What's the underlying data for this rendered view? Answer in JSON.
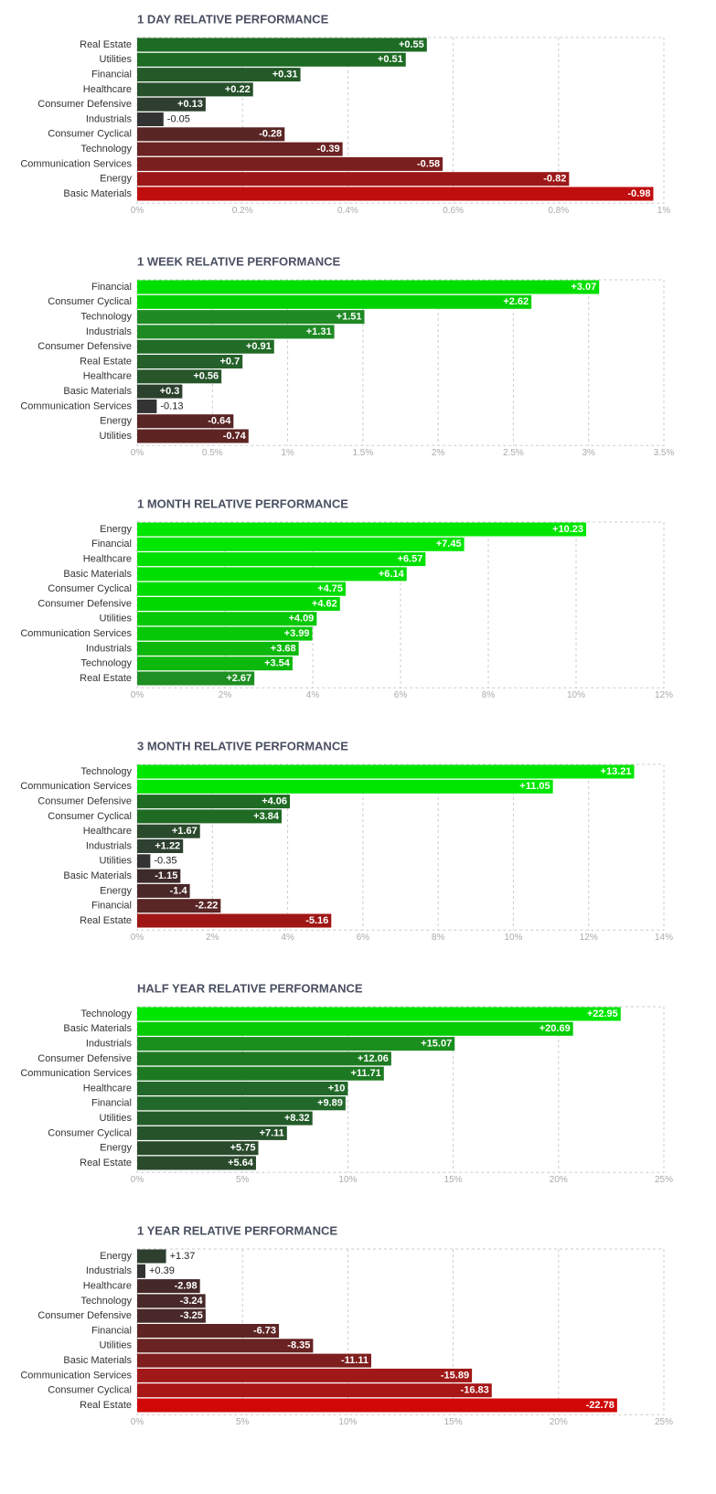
{
  "chart_data": [
    {
      "type": "bar",
      "title": "1 DAY RELATIVE PERFORMANCE",
      "categories": [
        "Real Estate",
        "Utilities",
        "Financial",
        "Healthcare",
        "Consumer Defensive",
        "Industrials",
        "Consumer Cyclical",
        "Technology",
        "Communication Services",
        "Energy",
        "Basic Materials"
      ],
      "values": [
        0.55,
        0.51,
        0.31,
        0.22,
        0.13,
        -0.05,
        -0.28,
        -0.39,
        -0.58,
        -0.82,
        -0.98
      ],
      "value_labels": [
        "+0.55",
        "+0.51",
        "+0.31",
        "+0.22",
        "+0.13",
        "-0.05",
        "-0.28",
        "-0.39",
        "-0.58",
        "-0.82",
        "-0.98"
      ],
      "colors": [
        "#1e6b24",
        "#1e6b24",
        "#235a27",
        "#26502a",
        "#2e3f2f",
        "#333333",
        "#5a2525",
        "#6a2222",
        "#7a1f1f",
        "#9c1717",
        "#c00e0e"
      ],
      "xlim": [
        0,
        1
      ],
      "xticks": [
        {
          "value": 0,
          "label": "0%"
        },
        {
          "value": 0.2,
          "label": "0.2%"
        },
        {
          "value": 0.4,
          "label": "0.4%"
        },
        {
          "value": 0.6,
          "label": "0.6%"
        },
        {
          "value": 0.8,
          "label": "0.8%"
        },
        {
          "value": 1,
          "label": "1%"
        }
      ],
      "grid": true
    },
    {
      "type": "bar",
      "title": "1 WEEK RELATIVE PERFORMANCE",
      "categories": [
        "Financial",
        "Consumer Cyclical",
        "Technology",
        "Industrials",
        "Consumer Defensive",
        "Real Estate",
        "Healthcare",
        "Basic Materials",
        "Communication Services",
        "Energy",
        "Utilities"
      ],
      "values": [
        3.07,
        2.62,
        1.51,
        1.31,
        0.91,
        0.7,
        0.56,
        0.3,
        -0.13,
        -0.64,
        -0.74
      ],
      "value_labels": [
        "+3.07",
        "+2.62",
        "+1.51",
        "+1.31",
        "+0.91",
        "+0.7",
        "+0.56",
        "+0.3",
        "-0.13",
        "-0.64",
        "-0.74"
      ],
      "colors": [
        "#00e000",
        "#00d200",
        "#1f8a24",
        "#1f8a24",
        "#216b26",
        "#25602a",
        "#26562a",
        "#2c402e",
        "#333333",
        "#5a2525",
        "#5e2424"
      ],
      "xlim": [
        0,
        3.5
      ],
      "xticks": [
        {
          "value": 0,
          "label": "0%"
        },
        {
          "value": 0.5,
          "label": "0.5%"
        },
        {
          "value": 1,
          "label": "1%"
        },
        {
          "value": 1.5,
          "label": "1.5%"
        },
        {
          "value": 2,
          "label": "2%"
        },
        {
          "value": 2.5,
          "label": "2.5%"
        },
        {
          "value": 3,
          "label": "3%"
        },
        {
          "value": 3.5,
          "label": "3.5%"
        }
      ],
      "grid": true
    },
    {
      "type": "bar",
      "title": "1 MONTH RELATIVE PERFORMANCE",
      "categories": [
        "Energy",
        "Financial",
        "Healthcare",
        "Basic Materials",
        "Consumer Cyclical",
        "Consumer Defensive",
        "Utilities",
        "Communication Services",
        "Industrials",
        "Technology",
        "Real Estate"
      ],
      "values": [
        10.23,
        7.45,
        6.57,
        6.14,
        4.75,
        4.62,
        4.09,
        3.99,
        3.68,
        3.54,
        2.67
      ],
      "value_labels": [
        "+10.23",
        "+7.45",
        "+6.57",
        "+6.14",
        "+4.75",
        "+4.62",
        "+4.09",
        "+3.99",
        "+3.68",
        "+3.54",
        "+2.67"
      ],
      "colors": [
        "#00e600",
        "#00e600",
        "#00e000",
        "#00e000",
        "#00dd00",
        "#00d800",
        "#06c806",
        "#06c806",
        "#0cb80c",
        "#0cb80c",
        "#1e8f22"
      ],
      "xlim": [
        0,
        12
      ],
      "xticks": [
        {
          "value": 0,
          "label": "0%"
        },
        {
          "value": 2,
          "label": "2%"
        },
        {
          "value": 4,
          "label": "4%"
        },
        {
          "value": 6,
          "label": "6%"
        },
        {
          "value": 8,
          "label": "8%"
        },
        {
          "value": 10,
          "label": "10%"
        },
        {
          "value": 12,
          "label": "12%"
        }
      ],
      "grid": true
    },
    {
      "type": "bar",
      "title": "3 MONTH RELATIVE PERFORMANCE",
      "categories": [
        "Technology",
        "Communication Services",
        "Consumer Defensive",
        "Consumer Cyclical",
        "Healthcare",
        "Industrials",
        "Utilities",
        "Basic Materials",
        "Energy",
        "Financial",
        "Real Estate"
      ],
      "values": [
        13.21,
        11.05,
        4.06,
        3.84,
        1.67,
        1.22,
        -0.35,
        -1.15,
        -1.4,
        -2.22,
        -5.16
      ],
      "value_labels": [
        "+13.21",
        "+11.05",
        "+4.06",
        "+3.84",
        "+1.67",
        "+1.22",
        "-0.35",
        "-1.15",
        "-1.4",
        "-2.22",
        "-5.16"
      ],
      "colors": [
        "#00e600",
        "#00e600",
        "#1f6b24",
        "#1f6b24",
        "#2a4a2c",
        "#2e402f",
        "#333333",
        "#3d2a2a",
        "#4a2828",
        "#5a2525",
        "#a01616"
      ],
      "xlim": [
        0,
        14
      ],
      "xticks": [
        {
          "value": 0,
          "label": "0%"
        },
        {
          "value": 2,
          "label": "2%"
        },
        {
          "value": 4,
          "label": "4%"
        },
        {
          "value": 6,
          "label": "6%"
        },
        {
          "value": 8,
          "label": "8%"
        },
        {
          "value": 10,
          "label": "10%"
        },
        {
          "value": 12,
          "label": "12%"
        },
        {
          "value": 14,
          "label": "14%"
        }
      ],
      "grid": true
    },
    {
      "type": "bar",
      "title": "HALF YEAR RELATIVE PERFORMANCE",
      "categories": [
        "Technology",
        "Basic Materials",
        "Industrials",
        "Consumer Defensive",
        "Communication Services",
        "Healthcare",
        "Financial",
        "Utilities",
        "Consumer Cyclical",
        "Energy",
        "Real Estate"
      ],
      "values": [
        22.95,
        20.69,
        15.07,
        12.06,
        11.71,
        10,
        9.89,
        8.32,
        7.11,
        5.75,
        5.64
      ],
      "value_labels": [
        "+22.95",
        "+20.69",
        "+15.07",
        "+12.06",
        "+11.71",
        "+10",
        "+9.89",
        "+8.32",
        "+7.11",
        "+5.75",
        "+5.64"
      ],
      "colors": [
        "#00e600",
        "#06cc06",
        "#1a8f1e",
        "#1e7a22",
        "#1e7a22",
        "#22682a",
        "#22682a",
        "#245c29",
        "#27532b",
        "#2a4a2c",
        "#2a4a2c"
      ],
      "xlim": [
        0,
        25
      ],
      "xticks": [
        {
          "value": 0,
          "label": "0%"
        },
        {
          "value": 5,
          "label": "5%"
        },
        {
          "value": 10,
          "label": "10%"
        },
        {
          "value": 15,
          "label": "15%"
        },
        {
          "value": 20,
          "label": "20%"
        },
        {
          "value": 25,
          "label": "25%"
        }
      ],
      "grid": true
    },
    {
      "type": "bar",
      "title": "1 YEAR RELATIVE PERFORMANCE",
      "categories": [
        "Energy",
        "Industrials",
        "Healthcare",
        "Technology",
        "Consumer Defensive",
        "Financial",
        "Utilities",
        "Basic Materials",
        "Communication Services",
        "Consumer Cyclical",
        "Real Estate"
      ],
      "values": [
        1.37,
        0.39,
        -2.98,
        -3.24,
        -3.25,
        -6.73,
        -8.35,
        -11.11,
        -15.89,
        -16.83,
        -22.78
      ],
      "value_labels": [
        "+1.37",
        "+0.39",
        "-2.98",
        "-3.24",
        "-3.25",
        "-6.73",
        "-8.35",
        "-11.11",
        "-15.89",
        "-16.83",
        "-22.78"
      ],
      "colors": [
        "#2e3f2f",
        "#333333",
        "#452828",
        "#482828",
        "#482828",
        "#5e2424",
        "#6a2222",
        "#7e1e1e",
        "#a11818",
        "#a81616",
        "#d00808"
      ],
      "xlim": [
        0,
        25
      ],
      "xticks": [
        {
          "value": 0,
          "label": "0%"
        },
        {
          "value": 5,
          "label": "5%"
        },
        {
          "value": 10,
          "label": "10%"
        },
        {
          "value": 15,
          "label": "15%"
        },
        {
          "value": 20,
          "label": "20%"
        },
        {
          "value": 25,
          "label": "25%"
        }
      ],
      "grid": true
    }
  ]
}
